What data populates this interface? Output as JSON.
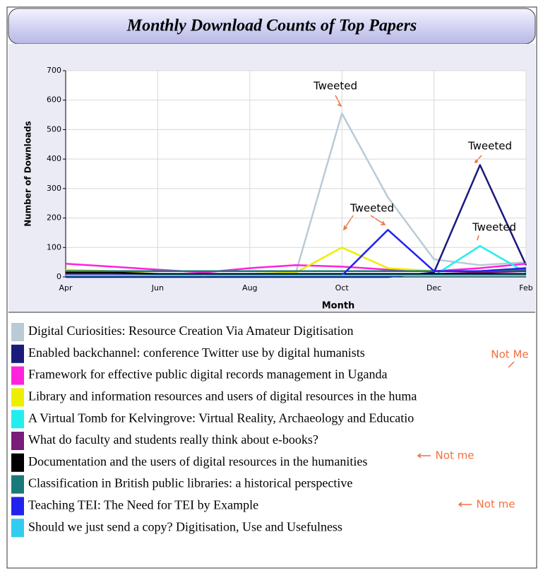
{
  "chart_data": {
    "type": "line",
    "title": "Monthly Download Counts of Top Papers",
    "ylabel": "Number of Downloads",
    "xlabel": "Month",
    "categories": [
      "Apr",
      null,
      "Jun",
      null,
      "Aug",
      null,
      "Oct",
      null,
      "Dec",
      null,
      "Feb"
    ],
    "ylim": [
      0,
      700
    ],
    "yticks": [
      0,
      100,
      200,
      300,
      400,
      500,
      600,
      700
    ],
    "grid": true,
    "series": [
      {
        "name": "Digital Curiosities: Resource Creation Via Amateur Digitisation",
        "color": "#b9cbd6",
        "values": [
          10,
          10,
          10,
          10,
          10,
          15,
          555,
          270,
          60,
          40,
          50
        ]
      },
      {
        "name": "Enabled backchannel: conference Twitter use by digital humanists",
        "color": "#1a1a7a",
        "values": [
          0,
          0,
          0,
          0,
          0,
          0,
          0,
          0,
          15,
          380,
          40
        ]
      },
      {
        "name": "Framework for effective public digital records management in Uganda",
        "color": "#ff22dd",
        "values": [
          45,
          35,
          25,
          15,
          30,
          40,
          35,
          25,
          20,
          30,
          45
        ]
      },
      {
        "name": "Library and information resources and users of digital resources in the huma",
        "color": "#eeee00",
        "values": [
          25,
          20,
          10,
          5,
          10,
          15,
          100,
          30,
          20,
          20,
          30
        ]
      },
      {
        "name": "A Virtual Tomb for Kelvingrove: Virtual Reality, Archaeology and Educatio",
        "color": "#22eeee",
        "values": [
          null,
          null,
          null,
          null,
          null,
          null,
          null,
          null,
          5,
          105,
          15
        ]
      },
      {
        "name": "What do faculty and students really think about e-books?",
        "color": "#7a1a7a",
        "values": [
          10,
          10,
          10,
          10,
          10,
          10,
          10,
          10,
          10,
          15,
          20
        ]
      },
      {
        "name": "Documentation and the users of digital resources in the humanities",
        "color": "#000000",
        "values": [
          15,
          15,
          10,
          10,
          10,
          10,
          10,
          10,
          10,
          10,
          10
        ]
      },
      {
        "name": "Classification in British public libraries: a historical perspective",
        "color": "#1a7a7a",
        "values": [
          20,
          20,
          20,
          20,
          20,
          20,
          20,
          20,
          20,
          20,
          25
        ]
      },
      {
        "name": "Teaching TEI: The Need for TEI by Example",
        "color": "#2222ee",
        "values": [
          null,
          null,
          null,
          null,
          null,
          null,
          5,
          160,
          20,
          20,
          30
        ]
      },
      {
        "name": "Should we just send a copy? Digitisation, Use and Usefulness",
        "color": "#33ccee",
        "values": [
          5,
          5,
          5,
          5,
          5,
          5,
          5,
          5,
          5,
          5,
          5
        ]
      }
    ],
    "annotations": [
      "Tweeted",
      "Tweeted",
      "Tweeted",
      "Tweeted",
      "Not Me",
      "Not me",
      "Not me"
    ]
  }
}
